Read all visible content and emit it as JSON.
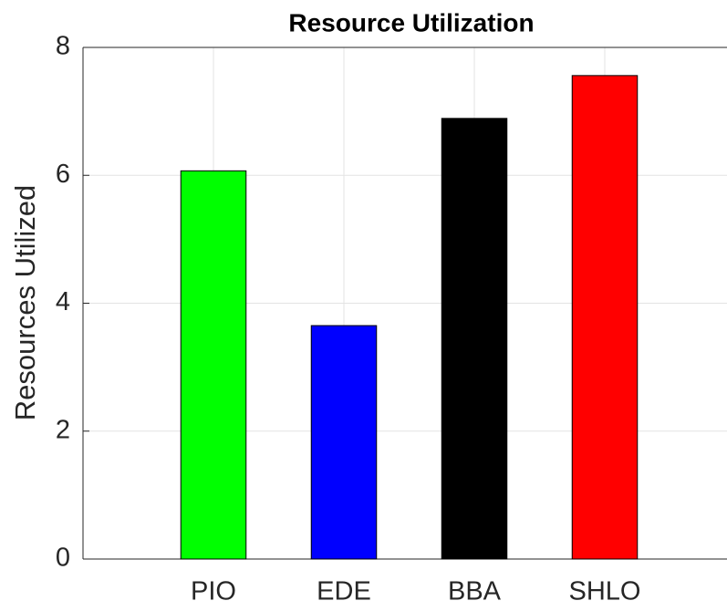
{
  "chart_data": {
    "type": "bar",
    "title": "Resource Utilization",
    "ylabel": "Resources Utilized",
    "categories": [
      "PIO",
      "EDE",
      "BBA",
      "SHLO"
    ],
    "values": [
      6.07,
      3.65,
      6.89,
      7.56
    ],
    "colors": [
      "#00ff00",
      "#0000ff",
      "#000000",
      "#ff0000"
    ],
    "ylim": [
      0,
      8
    ],
    "yticks": [
      0,
      2,
      4,
      6,
      8
    ],
    "grid": true
  }
}
